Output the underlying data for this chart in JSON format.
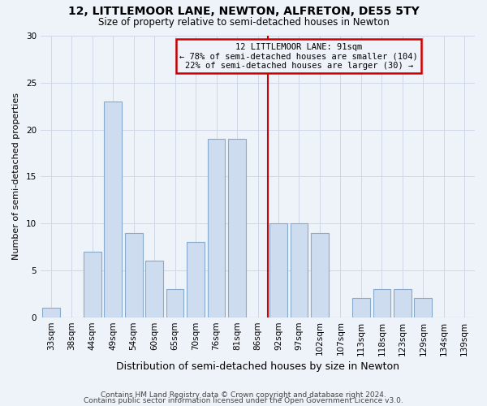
{
  "title": "12, LITTLEMOOR LANE, NEWTON, ALFRETON, DE55 5TY",
  "subtitle": "Size of property relative to semi-detached houses in Newton",
  "xlabel": "Distribution of semi-detached houses by size in Newton",
  "ylabel": "Number of semi-detached properties",
  "bin_labels": [
    "33sqm",
    "38sqm",
    "44sqm",
    "49sqm",
    "54sqm",
    "60sqm",
    "65sqm",
    "70sqm",
    "76sqm",
    "81sqm",
    "86sqm",
    "92sqm",
    "97sqm",
    "102sqm",
    "107sqm",
    "113sqm",
    "118sqm",
    "123sqm",
    "129sqm",
    "134sqm",
    "139sqm"
  ],
  "bar_values": [
    1,
    0,
    7,
    23,
    9,
    6,
    3,
    8,
    19,
    19,
    0,
    10,
    10,
    9,
    0,
    2,
    3,
    3,
    2,
    0,
    0
  ],
  "bar_color": "#cddcef",
  "bar_edge_color": "#88aacc",
  "grid_color": "#d0d8e8",
  "vline_color": "#cc0000",
  "annotation_title": "12 LITTLEMOOR LANE: 91sqm",
  "annotation_line1": "← 78% of semi-detached houses are smaller (104)",
  "annotation_line2": "22% of semi-detached houses are larger (30) →",
  "annotation_box_edge_color": "#cc0000",
  "footer1": "Contains HM Land Registry data © Crown copyright and database right 2024.",
  "footer2": "Contains public sector information licensed under the Open Government Licence v3.0.",
  "ylim": [
    0,
    30
  ],
  "yticks": [
    0,
    5,
    10,
    15,
    20,
    25,
    30
  ],
  "background_color": "#eef2f9",
  "title_fontsize": 10,
  "subtitle_fontsize": 8.5,
  "xlabel_fontsize": 9,
  "ylabel_fontsize": 8,
  "tick_fontsize": 7.5,
  "annotation_fontsize": 7.5,
  "footer_fontsize": 6.5
}
